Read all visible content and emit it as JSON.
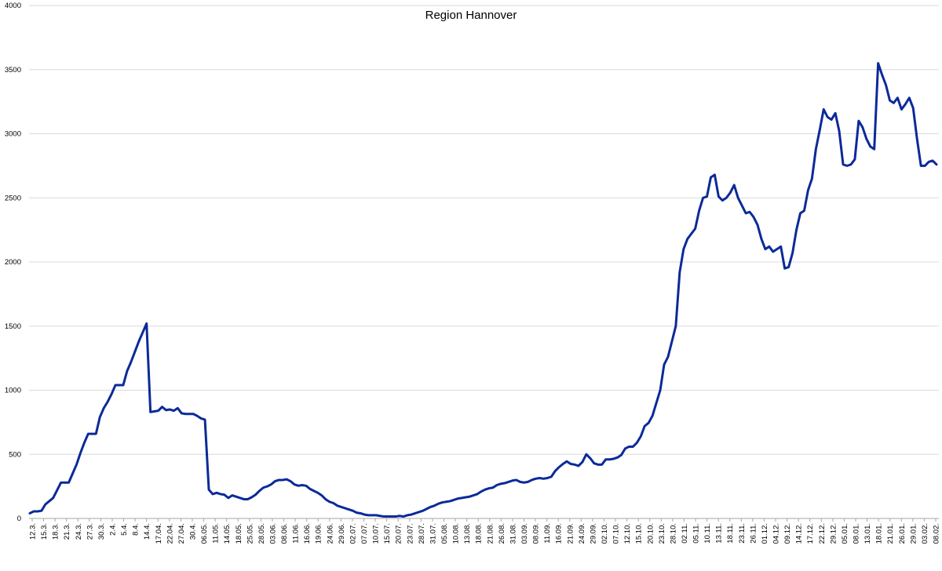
{
  "chart_data": {
    "type": "line",
    "title": "Region Hannover",
    "xlabel": "",
    "ylabel": "",
    "ylim": [
      0,
      4000
    ],
    "yticks": [
      0,
      500,
      1000,
      1500,
      2000,
      2500,
      3000,
      3500,
      4000
    ],
    "grid": true,
    "legend": "none",
    "line_color": "#0B2A99",
    "x_tick_labels": [
      "12.3.",
      "15.3.",
      "18.3.",
      "21.3.",
      "24.3.",
      "27.3.",
      "30.3.",
      "2.4.",
      "5.4.",
      "8.4.",
      "14.4.",
      "17.04.",
      "22.04.",
      "27.04.",
      "30.4.",
      "06.05.",
      "11.05.",
      "14.05.",
      "18.05.",
      "25.05.",
      "28.05.",
      "03.06.",
      "08.06.",
      "11.06.",
      "16.06.",
      "19.06.",
      "24.06.",
      "29.06.",
      "02.07.",
      "07.07.",
      "10.07.",
      "15.07.",
      "20.07.",
      "23.07.",
      "28.07.",
      "31.07.",
      "05.08.",
      "10.08.",
      "13.08.",
      "18.08.",
      "21.08.",
      "26.08.",
      "31.08.",
      "03.09.",
      "08.09.",
      "11.09.",
      "16.09.",
      "21.09.",
      "24.09.",
      "29.09.",
      "02.10.",
      "07.10.",
      "12.10.",
      "15.10.",
      "20.10.",
      "23.10.",
      "28.10.",
      "02.11.",
      "05.11.",
      "10.11.",
      "13.11.",
      "18.11.",
      "23.11.",
      "26.11.",
      "01.12.",
      "04.12.",
      "09.12.",
      "14.12.",
      "17.12.",
      "22.12.",
      "29.12.",
      "05.01.",
      "08.01.",
      "13.01.",
      "18.01.",
      "21.01.",
      "26.01.",
      "29.01.",
      "03.02.",
      "08.02."
    ],
    "values": [
      40,
      55,
      55,
      60,
      110,
      135,
      160,
      220,
      280,
      280,
      280,
      350,
      420,
      510,
      590,
      660,
      660,
      660,
      790,
      860,
      910,
      970,
      1040,
      1040,
      1040,
      1150,
      1220,
      1300,
      1380,
      1450,
      1520,
      830,
      835,
      840,
      870,
      845,
      850,
      840,
      860,
      820,
      815,
      815,
      815,
      800,
      780,
      770,
      225,
      190,
      200,
      190,
      185,
      160,
      180,
      170,
      160,
      150,
      150,
      165,
      185,
      215,
      240,
      250,
      265,
      290,
      300,
      300,
      305,
      290,
      265,
      255,
      260,
      255,
      230,
      215,
      200,
      180,
      150,
      130,
      120,
      100,
      90,
      80,
      70,
      60,
      45,
      40,
      30,
      25,
      25,
      25,
      20,
      15,
      15,
      15,
      15,
      20,
      15,
      25,
      30,
      40,
      50,
      60,
      75,
      90,
      100,
      115,
      125,
      130,
      135,
      145,
      155,
      160,
      165,
      170,
      180,
      190,
      210,
      225,
      235,
      240,
      260,
      270,
      275,
      285,
      295,
      300,
      285,
      280,
      285,
      300,
      310,
      315,
      310,
      315,
      325,
      370,
      400,
      425,
      445,
      425,
      420,
      410,
      440,
      500,
      470,
      430,
      420,
      420,
      460,
      460,
      465,
      475,
      495,
      545,
      560,
      560,
      590,
      640,
      720,
      745,
      800,
      900,
      1000,
      1200,
      1260,
      1380,
      1500,
      1920,
      2100,
      2180,
      2220,
      2260,
      2400,
      2500,
      2510,
      2660,
      2680,
      2510,
      2480,
      2500,
      2540,
      2600,
      2500,
      2440,
      2380,
      2390,
      2350,
      2290,
      2180,
      2100,
      2120,
      2080,
      2100,
      2120,
      1950,
      1960,
      2070,
      2250,
      2380,
      2400,
      2560,
      2650,
      2880,
      3030,
      3190,
      3130,
      3110,
      3160,
      3020,
      2760,
      2750,
      2760,
      2800,
      3100,
      3050,
      2960,
      2900,
      2880,
      3550,
      3460,
      3380,
      3260,
      3240,
      3280,
      3190,
      3230,
      3280,
      3200,
      2960,
      2750,
      2750,
      2780,
      2790,
      2760
    ]
  }
}
